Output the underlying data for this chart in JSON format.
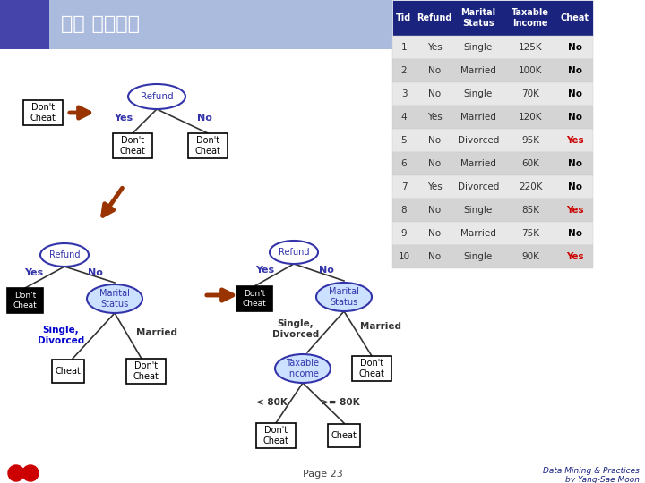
{
  "title": "헌트 알고리즘",
  "page_label": "Page 23",
  "footer_right": "Data Mining & Practices\nby Yang-Sae Moon",
  "table_header": [
    "Tid",
    "Refund",
    "Marital\nStatus",
    "Taxable\nIncome",
    "Cheat"
  ],
  "table_header_bg": "#1a237e",
  "table_data": [
    [
      "1",
      "Yes",
      "Single",
      "125K",
      "No"
    ],
    [
      "2",
      "No",
      "Married",
      "100K",
      "No"
    ],
    [
      "3",
      "No",
      "Single",
      "70K",
      "No"
    ],
    [
      "4",
      "Yes",
      "Married",
      "120K",
      "No"
    ],
    [
      "5",
      "No",
      "Divorced",
      "95K",
      "Yes"
    ],
    [
      "6",
      "No",
      "Married",
      "60K",
      "No"
    ],
    [
      "7",
      "Yes",
      "Divorced",
      "220K",
      "No"
    ],
    [
      "8",
      "No",
      "Single",
      "85K",
      "Yes"
    ],
    [
      "9",
      "No",
      "Married",
      "75K",
      "No"
    ],
    [
      "10",
      "No",
      "Single",
      "90K",
      "Yes"
    ]
  ],
  "cheat_yes_color": "#cc0000",
  "node_circle_color": "#3333aa",
  "node_circle_fill": "#ffffff",
  "node_blue_fill": "#cce0ff",
  "label_blue_color": "#3333aa",
  "arrow_big_color": "#993300",
  "line_color": "#333333",
  "bg_color": "#ffffff",
  "single_divorced_color": "#0000cc"
}
